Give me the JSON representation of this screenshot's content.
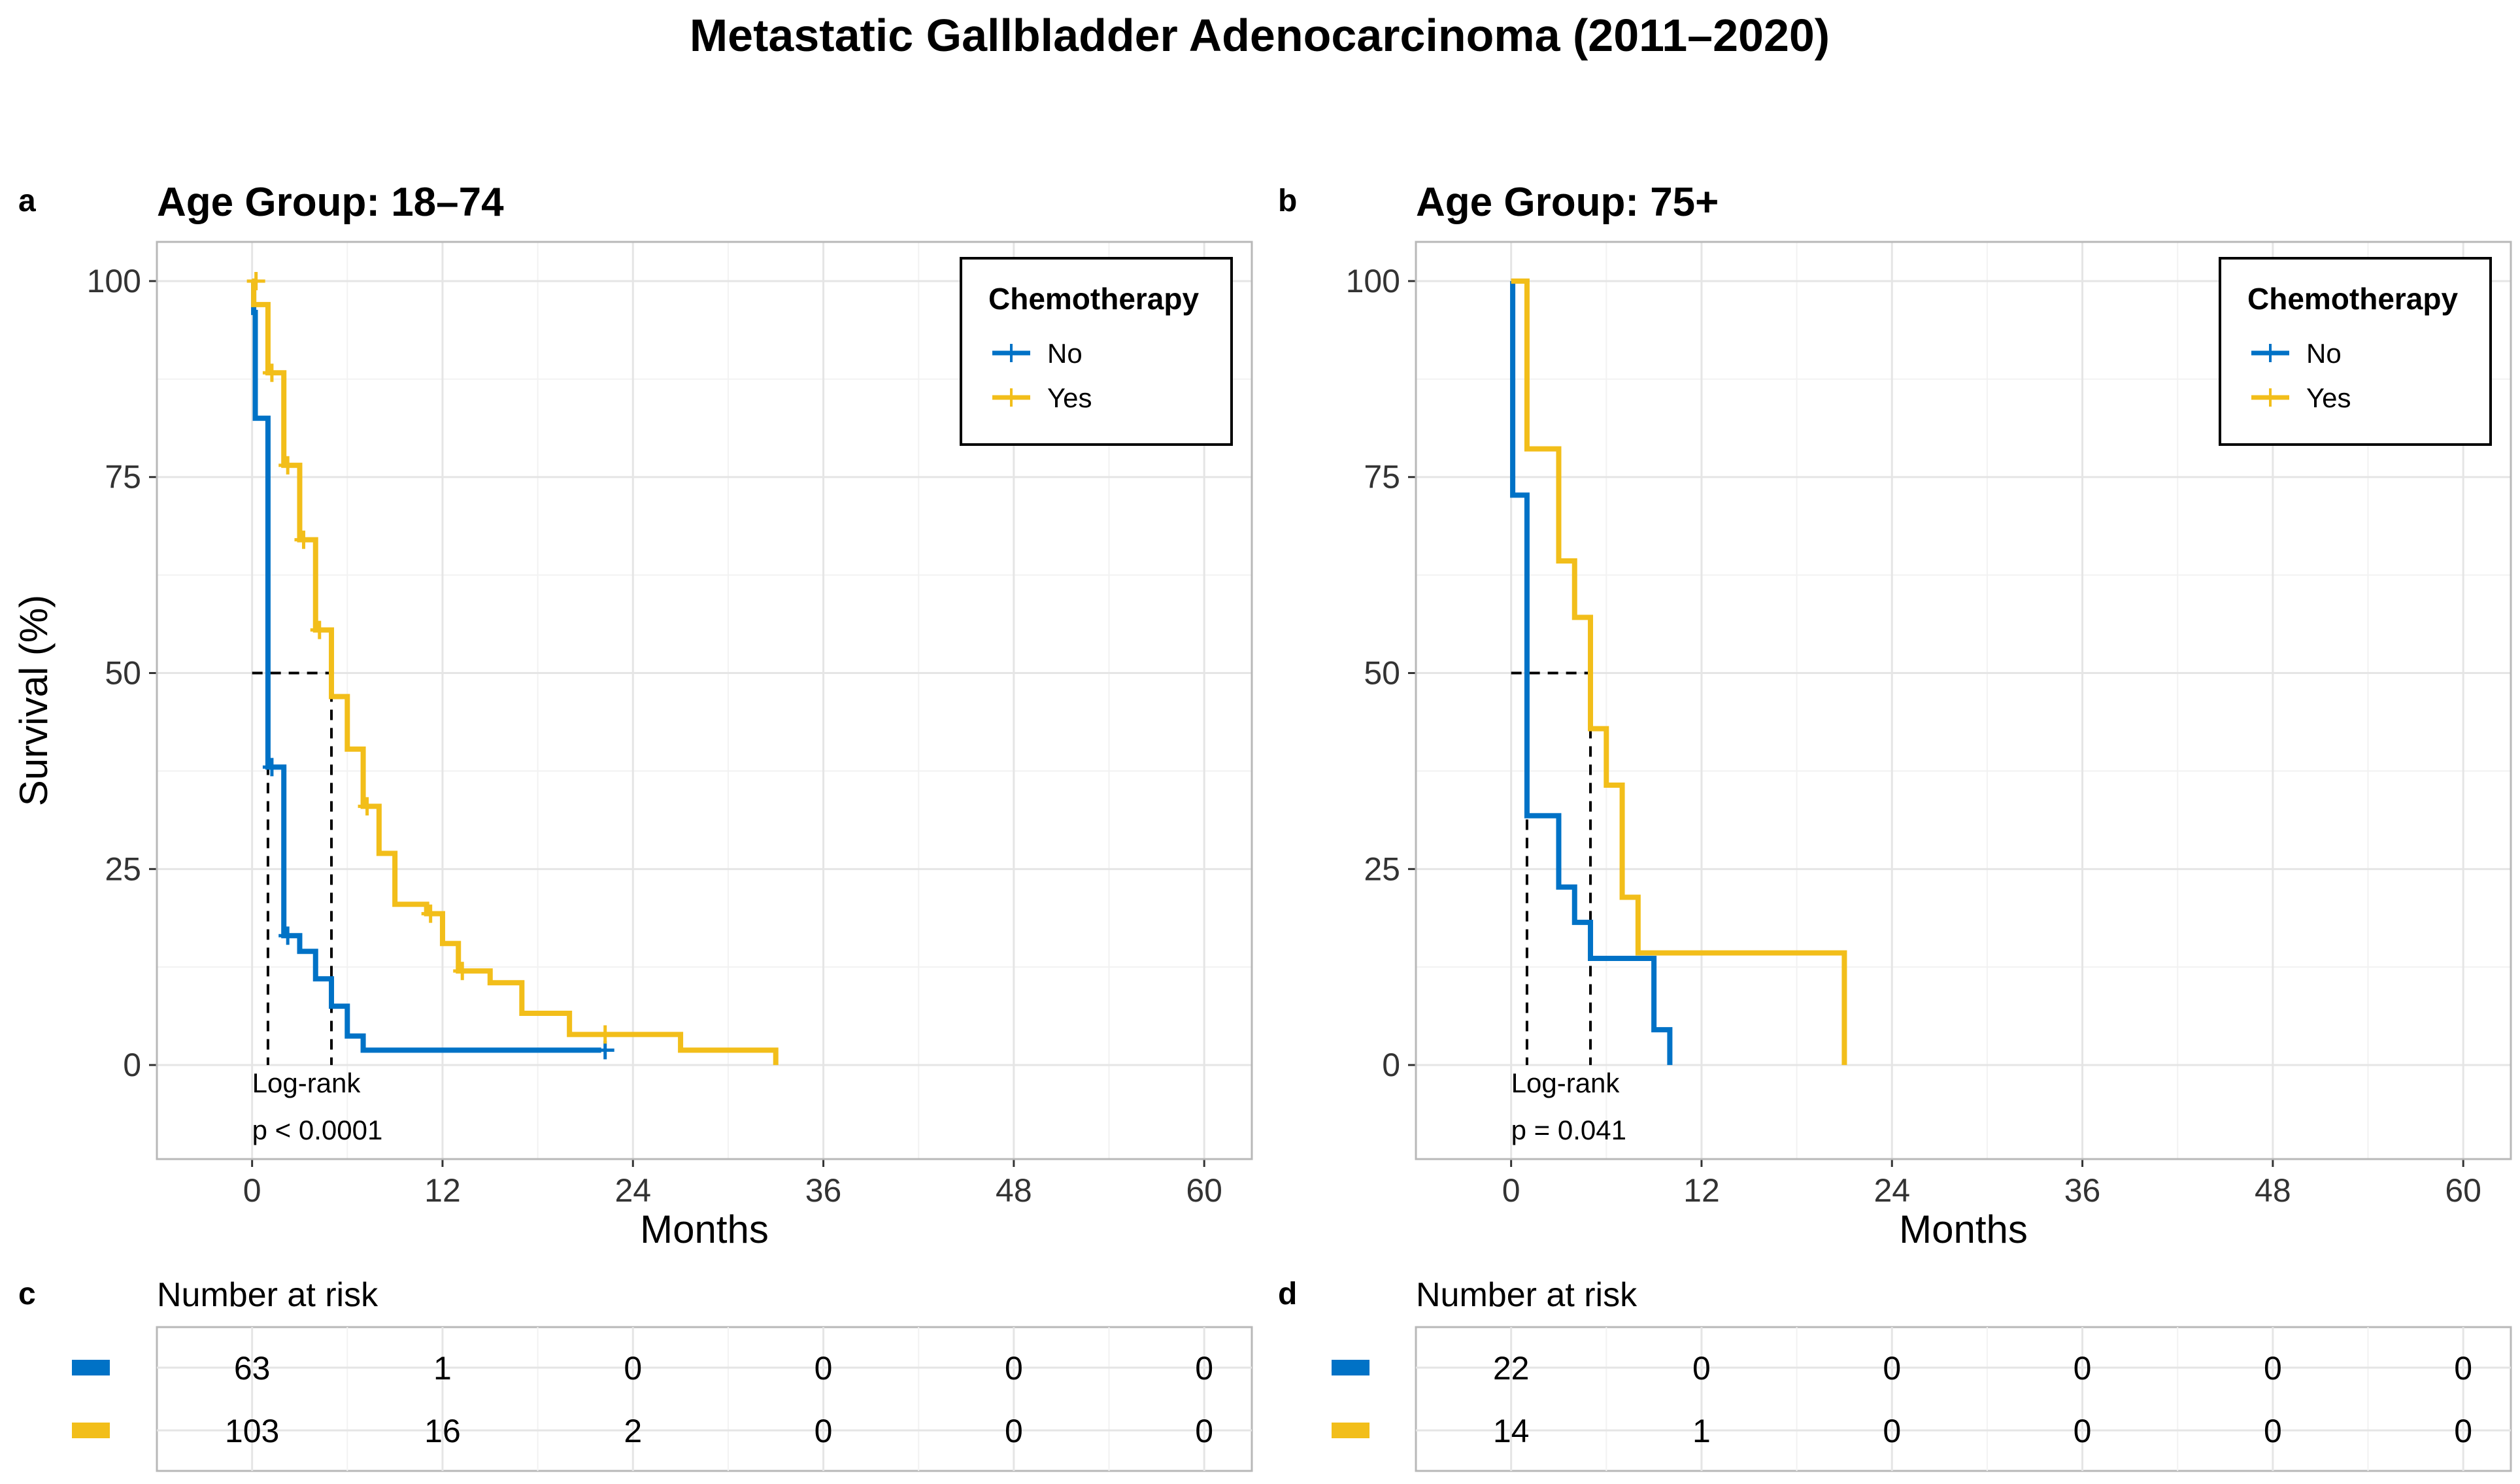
{
  "figure": {
    "title": "Metastatic Gallbladder Adenocarcinoma (2011–2020)",
    "colors": {
      "no": "#0072C6",
      "yes": "#F2BE1A",
      "grid": "#e5e5e5",
      "frame": "#b8b8b8"
    }
  },
  "chart_data": [
    {
      "type": "line",
      "subtype": "kaplan-meier",
      "panel": "a",
      "title": "Age Group: 18–74",
      "xlabel": "Months",
      "ylabel": "Survival (%)",
      "xlim": [
        -6,
        63
      ],
      "ylim": [
        -12,
        105
      ],
      "xticks": [
        0,
        12,
        24,
        36,
        48,
        60
      ],
      "yticks": [
        0,
        25,
        50,
        75,
        100
      ],
      "legend": {
        "title": "Chemotherapy",
        "position": "top-right",
        "entries": [
          "No",
          "Yes"
        ]
      },
      "annotation": [
        "Log-rank",
        "p < 0.0001"
      ],
      "median_lines": [
        1,
        5
      ],
      "series": [
        {
          "name": "No",
          "steps": [
            [
              0,
              100
            ],
            [
              0.1,
              96
            ],
            [
              0.2,
              82.5
            ],
            [
              1,
              38
            ],
            [
              2,
              16.5
            ],
            [
              3,
              14.5
            ],
            [
              4,
              11
            ],
            [
              5,
              7.5
            ],
            [
              6,
              3.7
            ],
            [
              7,
              1.9
            ],
            [
              22,
              1.9
            ]
          ],
          "censored": [
            [
              1,
              38
            ],
            [
              2,
              16.5
            ],
            [
              22,
              1.9
            ]
          ]
        },
        {
          "name": "Yes",
          "steps": [
            [
              0,
              100
            ],
            [
              0.1,
              97
            ],
            [
              1,
              88.3
            ],
            [
              2,
              76.5
            ],
            [
              3,
              67
            ],
            [
              4,
              55.5
            ],
            [
              5,
              47
            ],
            [
              6,
              40.3
            ],
            [
              7,
              33
            ],
            [
              8,
              27
            ],
            [
              9,
              20.5
            ],
            [
              11,
              19.3
            ],
            [
              12,
              15.5
            ],
            [
              13,
              12
            ],
            [
              15,
              10.5
            ],
            [
              17,
              6.6
            ],
            [
              20,
              3.9
            ],
            [
              27,
              1.9
            ],
            [
              33,
              0
            ]
          ],
          "censored": [
            [
              0,
              100
            ],
            [
              1,
              88.3
            ],
            [
              2,
              76.5
            ],
            [
              3,
              67
            ],
            [
              4,
              55.5
            ],
            [
              7,
              33
            ],
            [
              11,
              19.3
            ],
            [
              13,
              12
            ],
            [
              22,
              3.9
            ]
          ]
        }
      ]
    },
    {
      "type": "line",
      "subtype": "kaplan-meier",
      "panel": "b",
      "title": "Age Group: 75+",
      "xlabel": "Months",
      "ylabel": "",
      "xlim": [
        -6,
        63
      ],
      "ylim": [
        -12,
        105
      ],
      "xticks": [
        0,
        12,
        24,
        36,
        48,
        60
      ],
      "yticks": [
        0,
        25,
        50,
        75,
        100
      ],
      "legend": {
        "title": "Chemotherapy",
        "position": "top-right",
        "entries": [
          "No",
          "Yes"
        ]
      },
      "annotation": [
        "Log-rank",
        "p = 0.041"
      ],
      "median_lines": [
        1,
        5
      ],
      "series": [
        {
          "name": "No",
          "steps": [
            [
              0,
              100
            ],
            [
              0.1,
              72.7
            ],
            [
              1,
              31.8
            ],
            [
              3,
              22.7
            ],
            [
              4,
              18.2
            ],
            [
              5,
              13.6
            ],
            [
              9,
              4.5
            ],
            [
              10,
              0
            ]
          ],
          "censored": []
        },
        {
          "name": "Yes",
          "steps": [
            [
              0,
              100
            ],
            [
              1,
              78.6
            ],
            [
              3,
              64.3
            ],
            [
              4,
              57.1
            ],
            [
              5,
              42.9
            ],
            [
              6,
              35.7
            ],
            [
              7,
              21.4
            ],
            [
              8,
              14.3
            ],
            [
              21,
              0
            ]
          ],
          "censored": []
        }
      ]
    }
  ],
  "risk_tables": [
    {
      "panel": "c",
      "title": "Number at risk",
      "times": [
        0,
        12,
        24,
        36,
        48,
        60
      ],
      "rows": [
        {
          "group": "No",
          "counts": [
            63,
            1,
            0,
            0,
            0,
            0
          ]
        },
        {
          "group": "Yes",
          "counts": [
            103,
            16,
            2,
            0,
            0,
            0
          ]
        }
      ]
    },
    {
      "panel": "d",
      "title": "Number at risk",
      "times": [
        0,
        12,
        24,
        36,
        48,
        60
      ],
      "rows": [
        {
          "group": "No",
          "counts": [
            22,
            0,
            0,
            0,
            0,
            0
          ]
        },
        {
          "group": "Yes",
          "counts": [
            14,
            1,
            0,
            0,
            0,
            0
          ]
        }
      ]
    }
  ]
}
